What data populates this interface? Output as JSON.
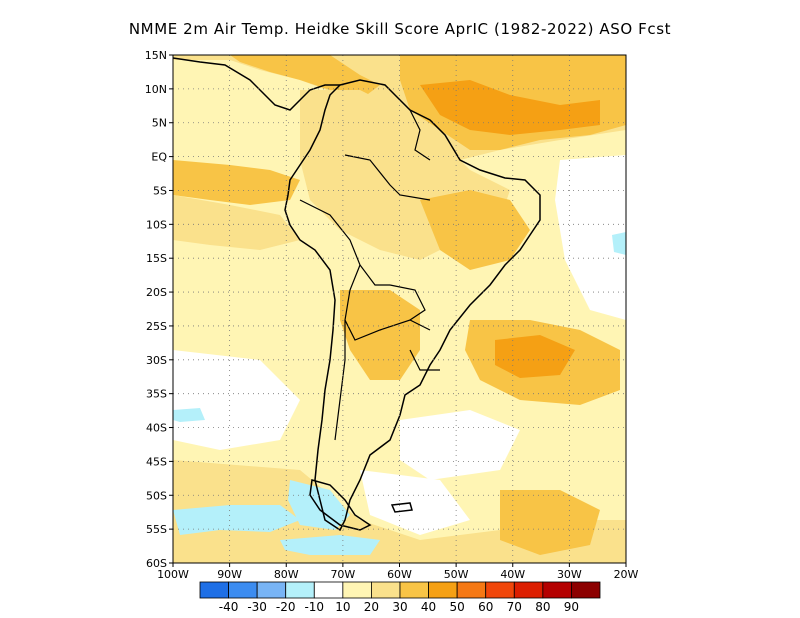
{
  "title": "NMME  2m Air Temp. Heidke Skill Score AprIC (1982-2022) ASO Fcst",
  "map": {
    "region": "South America",
    "lat_labels": [
      "15N",
      "10N",
      "5N",
      "EQ",
      "5S",
      "10S",
      "15S",
      "20S",
      "25S",
      "30S",
      "35S",
      "40S",
      "45S",
      "50S",
      "55S",
      "60S"
    ],
    "lon_labels": [
      "100W",
      "90W",
      "80W",
      "70W",
      "60W",
      "50W",
      "40W",
      "30W",
      "20W"
    ],
    "grid": "dotted",
    "skill_regions": [
      {
        "name": "caribbean-sea",
        "value": 40
      },
      {
        "name": "north-atlantic-tropical",
        "value": 50
      },
      {
        "name": "amazon-north",
        "value": 30
      },
      {
        "name": "eastern-pacific-equatorial",
        "value": 40
      },
      {
        "name": "la-plata-region",
        "value": 40
      },
      {
        "name": "south-atlantic-30s",
        "value": 40
      },
      {
        "name": "southern-ocean-patch",
        "value": -10
      }
    ]
  },
  "colorbar": {
    "labels": [
      "-40",
      "-30",
      "-20",
      "-10",
      "10",
      "20",
      "30",
      "40",
      "50",
      "60",
      "70",
      "80",
      "90"
    ],
    "colors": [
      "#1e6fe6",
      "#3c8cf0",
      "#78b4f5",
      "#b4f0fa",
      "#ffffff",
      "#fff5b4",
      "#fae18c",
      "#f8c446",
      "#f5a014",
      "#f57814",
      "#f0460a",
      "#dc1e00",
      "#b40000",
      "#8c0000"
    ]
  }
}
